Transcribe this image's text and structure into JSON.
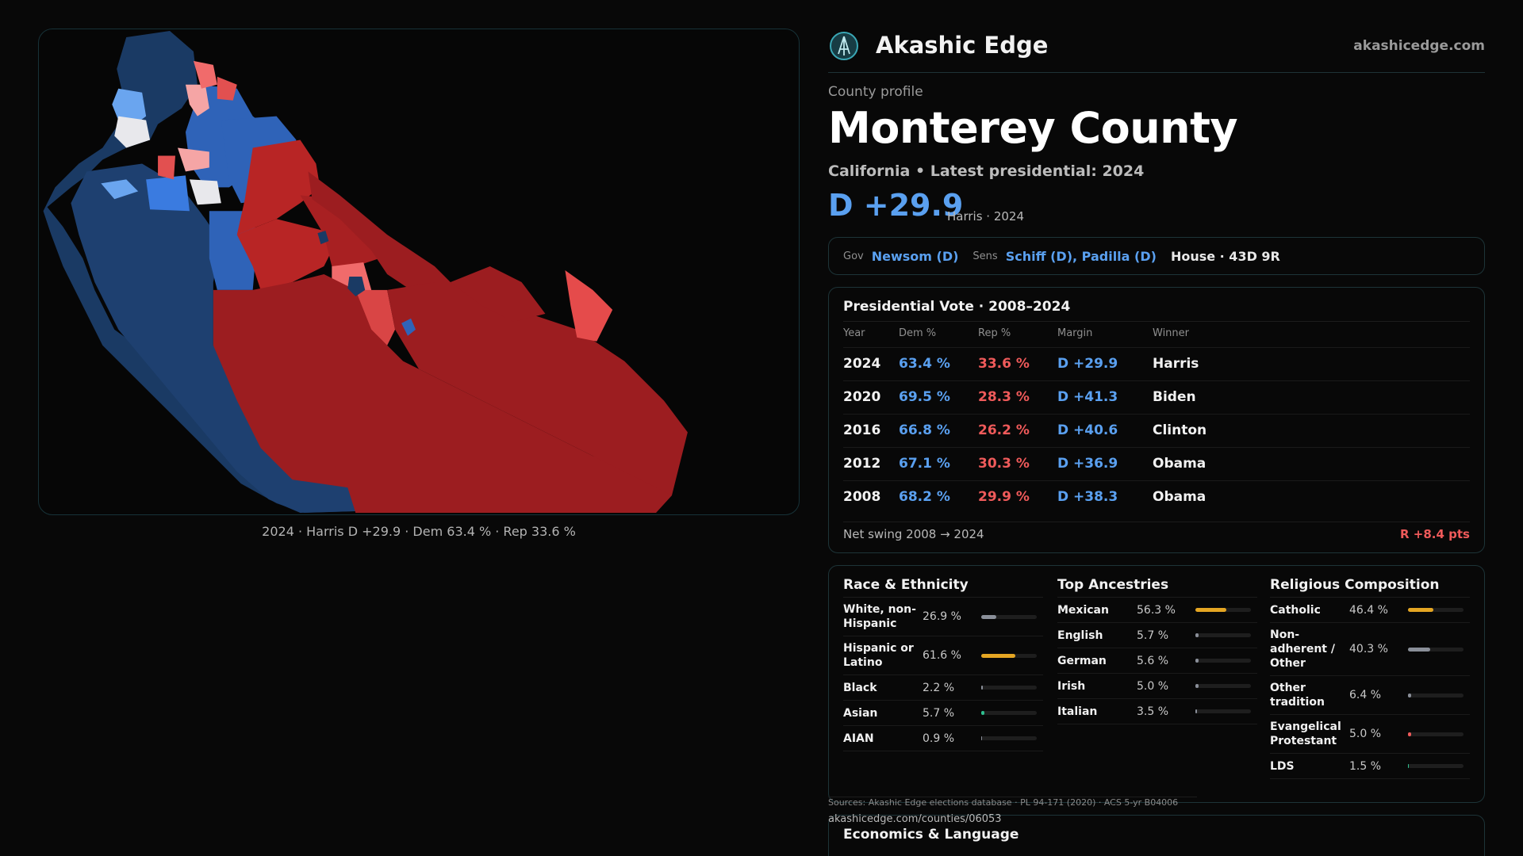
{
  "map": {
    "caption": "2024 · Harris D +29.9 · Dem 63.4 % · Rep 33.6 %",
    "colors": {
      "dark_blue": "#1a3a64",
      "blue": "#2f63b8",
      "light_blue": "#6aa5ef",
      "pale": "#e8e8ec",
      "light_red": "#f06b6b",
      "red": "#b82525",
      "dark_red": "#9c1d20"
    }
  },
  "brand": {
    "name": "Akashic Edge",
    "url": "akashicedge.com",
    "logo_icon": "akashic-edge-logo"
  },
  "county": {
    "label": "County profile",
    "title": "Monterey County",
    "subtitle": "California • Latest presidential: 2024",
    "margin": "D +29.9",
    "margin_note": "Harris · 2024"
  },
  "officials": {
    "gov_label": "Gov",
    "gov": "Newsom (D)",
    "sens_label": "Sens",
    "sens": "Schiff (D), Padilla (D)",
    "house": "House · 43D 9R"
  },
  "vote": {
    "title": "Presidential Vote · 2008–2024",
    "headers": [
      "Year",
      "Dem %",
      "Rep %",
      "Margin",
      "Winner"
    ],
    "rows": [
      {
        "year": "2024",
        "dem": "63.4 %",
        "rep": "33.6 %",
        "margin": "D +29.9",
        "winner": "Harris"
      },
      {
        "year": "2020",
        "dem": "69.5 %",
        "rep": "28.3 %",
        "margin": "D +41.3",
        "winner": "Biden"
      },
      {
        "year": "2016",
        "dem": "66.8 %",
        "rep": "26.2 %",
        "margin": "D +40.6",
        "winner": "Clinton"
      },
      {
        "year": "2012",
        "dem": "67.1 %",
        "rep": "30.3 %",
        "margin": "D +36.9",
        "winner": "Obama"
      },
      {
        "year": "2008",
        "dem": "68.2 %",
        "rep": "29.9 %",
        "margin": "D +38.3",
        "winner": "Obama"
      }
    ],
    "swing_label": "Net swing 2008 → 2024",
    "swing_value": "R +8.4 pts"
  },
  "race": {
    "title": "Race & Ethnicity",
    "items": [
      {
        "name": "White, non-Hispanic",
        "pct": "26.9 %",
        "value": 26.9,
        "color": "#8a8f99"
      },
      {
        "name": "Hispanic or Latino",
        "pct": "61.6 %",
        "value": 61.6,
        "color": "#e5a623"
      },
      {
        "name": "Black",
        "pct": "2.2 %",
        "value": 2.2,
        "color": "#8a8f99"
      },
      {
        "name": "Asian",
        "pct": "5.7 %",
        "value": 5.7,
        "color": "#2fbf8f"
      },
      {
        "name": "AIAN",
        "pct": "0.9 %",
        "value": 0.9,
        "color": "#8a8f99"
      }
    ]
  },
  "ancestry": {
    "title": "Top Ancestries",
    "items": [
      {
        "name": "Mexican",
        "pct": "56.3 %",
        "value": 56.3,
        "color": "#e5a623"
      },
      {
        "name": "English",
        "pct": "5.7 %",
        "value": 5.7,
        "color": "#8a8f99"
      },
      {
        "name": "German",
        "pct": "5.6 %",
        "value": 5.6,
        "color": "#8a8f99"
      },
      {
        "name": "Irish",
        "pct": "5.0 %",
        "value": 5.0,
        "color": "#8a8f99"
      },
      {
        "name": "Italian",
        "pct": "3.5 %",
        "value": 3.5,
        "color": "#8a8f99"
      }
    ]
  },
  "religion": {
    "title": "Religious Composition",
    "items": [
      {
        "name": "Catholic",
        "pct": "46.4 %",
        "value": 46.4,
        "color": "#e5a623"
      },
      {
        "name": "Non-adherent / Other",
        "pct": "40.3 %",
        "value": 40.3,
        "color": "#8a8f99"
      },
      {
        "name": "Other tradition",
        "pct": "6.4 %",
        "value": 6.4,
        "color": "#8a8f99"
      },
      {
        "name": "Evangelical Protestant",
        "pct": "5.0 %",
        "value": 5.0,
        "color": "#ef5a5a"
      },
      {
        "name": "LDS",
        "pct": "1.5 %",
        "value": 1.5,
        "color": "#2fbf8f"
      }
    ]
  },
  "footer": {
    "sources": "Sources: Akashic Edge elections database · PL 94-171 (2020) · ACS 5-yr B04006",
    "url": "akashicedge.com/counties/06053"
  },
  "econ": {
    "title": "Economics & Language"
  }
}
